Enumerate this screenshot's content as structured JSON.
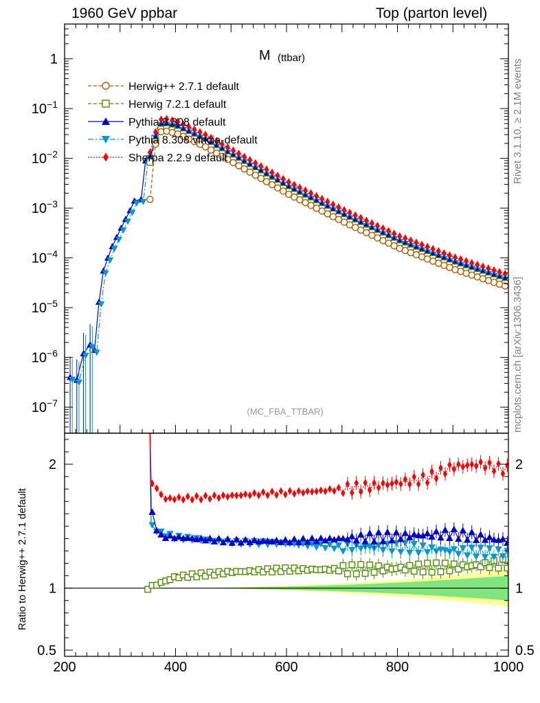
{
  "header": {
    "left": "1960 GeV ppbar",
    "right": "Top (parton level)"
  },
  "side_texts": {
    "rivet": "Rivet 3.1.10, ≥ 2.1M events",
    "mcplots": "mcplots.cern.ch [arXiv:1306.3436]"
  },
  "ratio_ylabel": "Ratio to Herwig++ 2.7.1 default",
  "chart_data": [
    {
      "type": "scatter",
      "panel": "main",
      "title": "M",
      "title_sub": "(ttbar)",
      "analysis_label": "(MC_FBA_TTBAR)",
      "xlim": [
        200,
        1000
      ],
      "ylim": [
        3e-08,
        5
      ],
      "yscale": "log",
      "y_ticks": [
        {
          "v": 1e-07,
          "base": "10",
          "exp": "−7"
        },
        {
          "v": 1e-06,
          "base": "10",
          "exp": "−6"
        },
        {
          "v": 1e-05,
          "base": "10",
          "exp": "−5"
        },
        {
          "v": 0.0001,
          "base": "10",
          "exp": "−4"
        },
        {
          "v": 0.001,
          "base": "10",
          "exp": "−3"
        },
        {
          "v": 0.01,
          "base": "10",
          "exp": "−2"
        },
        {
          "v": 0.1,
          "base": "10",
          "exp": "−1"
        },
        {
          "v": 1,
          "base": "1",
          "exp": ""
        }
      ],
      "legend_position": "top-left",
      "legend": [
        {
          "name": "Herwig++ 2.7.1 default",
          "color": "#b35900",
          "marker": "open-circle",
          "dash": "5,3"
        },
        {
          "name": "Herwig 7.2.1 default",
          "color": "#4d8c00",
          "marker": "open-square",
          "dash": "5,3"
        },
        {
          "name": "Pythia 8.308 default",
          "color": "#0000cc",
          "marker": "triangle-up",
          "dash": ""
        },
        {
          "name": "Pythia 8.308 vincia-default",
          "color": "#0099cc",
          "marker": "triangle-down",
          "dash": "8,3,2,3"
        },
        {
          "name": "Sherpa 2.2.9 default",
          "color": "#ff0000",
          "marker": "diamond",
          "dash": "2,2"
        }
      ],
      "model": {
        "comment": "Spectrum values: peak near 375 GeV, exponential fall-off; threshold rise below 350 GeV",
        "low_mass_points": [
          [
            210,
            4e-07
          ],
          [
            222,
            3.5e-07
          ],
          [
            234,
            1.2e-06
          ],
          [
            246,
            1.8e-06
          ],
          [
            254,
            1.4e-06
          ],
          [
            262,
            1.3e-05
          ],
          [
            270,
            5.5e-05
          ],
          [
            278,
            0.0001
          ],
          [
            286,
            0.00017
          ],
          [
            294,
            0.00026
          ],
          [
            302,
            0.0004
          ],
          [
            310,
            0.0006
          ],
          [
            318,
            0.0009
          ],
          [
            326,
            0.0014
          ],
          [
            338,
            0.0015
          ],
          [
            346,
            0.009
          ]
        ],
        "herwig_pp": [
          [
            350,
            0.0015
          ],
          [
            362,
            0.032
          ],
          [
            376,
            0.036
          ],
          [
            400,
            0.031
          ],
          [
            450,
            0.017
          ],
          [
            500,
            0.0082
          ],
          [
            600,
            0.0019
          ],
          [
            700,
            0.00052
          ],
          [
            800,
            0.000155
          ],
          [
            900,
            5.8e-05
          ],
          [
            1000,
            2.5e-05
          ]
        ],
        "ratios_to_herwig_pp": {
          "Herwig 7.2.1 default": 1.12,
          "Pythia 8.308 default": 1.36,
          "Pythia 8.308 vincia-default": 1.35,
          "Sherpa 2.2.9 default": 1.75
        }
      }
    },
    {
      "type": "scatter",
      "panel": "ratio",
      "ylabel": "Ratio to Herwig++ 2.7.1 default",
      "xlim": [
        200,
        1000
      ],
      "ylim": [
        0.45,
        2.25
      ],
      "x_ticks": [
        200,
        400,
        600,
        800,
        1000
      ],
      "y_ticks": [
        0.5,
        1,
        2
      ],
      "series": [
        {
          "name": "Herwig 7.2.1 default",
          "values_at": [
            [
              350,
              1.0
            ],
            [
              400,
              1.09
            ],
            [
              500,
              1.13
            ],
            [
              600,
              1.15
            ],
            [
              700,
              1.15
            ],
            [
              800,
              1.16
            ],
            [
              900,
              1.17
            ],
            [
              1000,
              1.2
            ]
          ]
        },
        {
          "name": "Pythia 8.308 default",
          "values_at": [
            [
              358,
              1.6
            ],
            [
              370,
              1.42
            ],
            [
              400,
              1.41
            ],
            [
              500,
              1.38
            ],
            [
              600,
              1.38
            ],
            [
              700,
              1.4
            ],
            [
              800,
              1.42
            ],
            [
              900,
              1.44
            ],
            [
              1000,
              1.38
            ]
          ]
        },
        {
          "name": "Pythia 8.308 vincia-default",
          "values_at": [
            [
              358,
              1.5
            ],
            [
              370,
              1.45
            ],
            [
              400,
              1.41
            ],
            [
              500,
              1.37
            ],
            [
              600,
              1.36
            ],
            [
              700,
              1.33
            ],
            [
              800,
              1.33
            ],
            [
              900,
              1.3
            ],
            [
              1000,
              1.28
            ]
          ]
        },
        {
          "name": "Sherpa 2.2.9 default",
          "values_at": [
            [
              358,
              1.85
            ],
            [
              380,
              1.72
            ],
            [
              450,
              1.73
            ],
            [
              550,
              1.76
            ],
            [
              650,
              1.78
            ],
            [
              750,
              1.82
            ],
            [
              850,
              1.88
            ],
            [
              900,
              1.98
            ],
            [
              950,
              2.0
            ],
            [
              1000,
              1.95
            ]
          ]
        }
      ],
      "uncertainty_band": {
        "colors": [
          "#ffff99",
          "#7fe57f"
        ],
        "relative_halfwidth_at_1000": [
          0.15,
          0.1
        ]
      }
    }
  ]
}
